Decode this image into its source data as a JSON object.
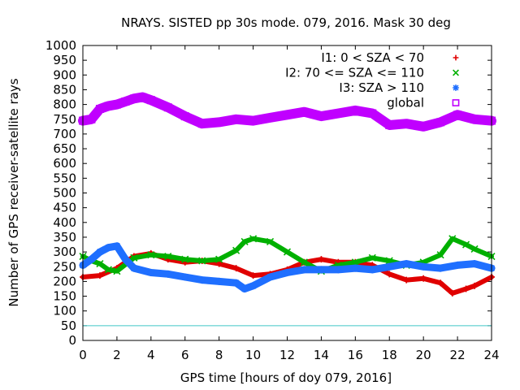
{
  "chart_data": {
    "type": "scatter",
    "title": "NRAYS. SISTED pp 30s mode. 079, 2016. Mask 30 deg",
    "xlabel": "GPS time [hours of doy 079, 2016]",
    "ylabel": "Number of GPS receiver-satellite rays",
    "xlim": [
      0,
      24
    ],
    "ylim": [
      0,
      1000
    ],
    "x_ticks": [
      0,
      2,
      4,
      6,
      8,
      10,
      12,
      14,
      16,
      18,
      20,
      22,
      24
    ],
    "x_tick_labels": [
      "0",
      "2",
      "4",
      "6",
      "8",
      "10",
      "12",
      "14",
      "16",
      "18",
      "20",
      "22",
      "24"
    ],
    "y_ticks": [
      0,
      50,
      100,
      150,
      200,
      250,
      300,
      350,
      400,
      450,
      500,
      550,
      600,
      650,
      700,
      750,
      800,
      850,
      900,
      950,
      1000
    ],
    "y_tick_labels": [
      "0",
      "50",
      "100",
      "150",
      "200",
      "250",
      "300",
      "350",
      "400",
      "450",
      "500",
      "550",
      "600",
      "650",
      "700",
      "750",
      "800",
      "850",
      "900",
      "950",
      "1000"
    ],
    "legend_position": "top-right",
    "series": [
      {
        "name": "I1: 0 < SZA < 70",
        "color": "#e00000",
        "marker": "plus",
        "x": [
          0,
          1,
          2,
          3,
          4,
          5,
          6,
          7,
          8,
          9,
          10,
          11,
          12,
          13,
          14,
          15,
          16,
          17,
          18,
          19,
          20,
          21,
          21.7,
          22.5,
          23,
          24
        ],
        "y": [
          215,
          220,
          245,
          285,
          295,
          275,
          265,
          270,
          260,
          245,
          220,
          225,
          240,
          265,
          275,
          265,
          265,
          255,
          225,
          205,
          210,
          195,
          160,
          175,
          185,
          215
        ]
      },
      {
        "name": "I2: 70 <= SZA <= 110",
        "color": "#00b000",
        "marker": "cross",
        "x": [
          0,
          0.5,
          1,
          1.5,
          2,
          3,
          4,
          5,
          6,
          7,
          8,
          9,
          9.5,
          10,
          11,
          12,
          13,
          14,
          15,
          16,
          17,
          18,
          19,
          20,
          21,
          21.7,
          22.5,
          23,
          24
        ],
        "y": [
          285,
          270,
          260,
          240,
          235,
          280,
          290,
          285,
          275,
          270,
          275,
          305,
          335,
          345,
          335,
          300,
          265,
          235,
          255,
          265,
          280,
          270,
          255,
          265,
          290,
          345,
          325,
          310,
          285
        ]
      },
      {
        "name": "I3: SZA > 110",
        "color": "#1f6fff",
        "marker": "star",
        "x": [
          0,
          0.5,
          1,
          1.5,
          2,
          2.5,
          3,
          4,
          5,
          6,
          7,
          8,
          9,
          9.5,
          10,
          11,
          12,
          13,
          14,
          15,
          16,
          17,
          18,
          19,
          20,
          21,
          22,
          23,
          24
        ],
        "y": [
          255,
          275,
          300,
          315,
          320,
          275,
          245,
          230,
          225,
          215,
          205,
          200,
          195,
          175,
          185,
          215,
          230,
          240,
          240,
          240,
          245,
          240,
          250,
          260,
          250,
          245,
          255,
          260,
          245
        ]
      },
      {
        "name": "global",
        "color": "#c000ff",
        "marker": "square",
        "x": [
          0,
          0.5,
          1,
          1.5,
          2,
          2.5,
          3,
          3.5,
          4,
          5,
          6,
          7,
          8,
          9,
          10,
          11,
          12,
          13,
          14,
          15,
          16,
          17,
          18,
          19,
          20,
          21,
          22,
          23,
          24
        ],
        "y": [
          745,
          750,
          785,
          795,
          800,
          810,
          820,
          825,
          815,
          790,
          760,
          735,
          740,
          750,
          745,
          755,
          765,
          775,
          760,
          770,
          780,
          770,
          730,
          735,
          725,
          740,
          765,
          750,
          745
        ]
      }
    ],
    "reference_line": {
      "y": 50,
      "color": "#40c8c8"
    }
  }
}
